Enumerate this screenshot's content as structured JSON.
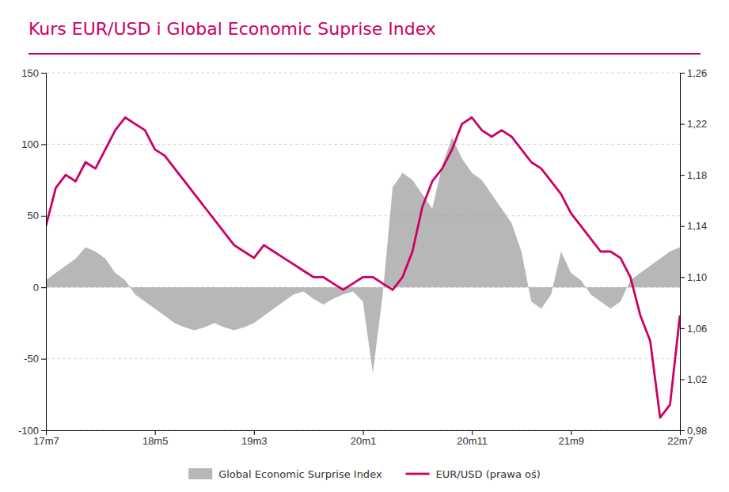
{
  "chart_data": {
    "type": "line",
    "title": "Kurs EUR/USD i Global Economic Suprise Index",
    "categories": [
      "17m7",
      null,
      null,
      null,
      null,
      null,
      null,
      null,
      null,
      null,
      null,
      "18m5",
      null,
      null,
      null,
      null,
      null,
      null,
      null,
      null,
      null,
      "19m3",
      null,
      null,
      null,
      null,
      null,
      null,
      null,
      null,
      null,
      null,
      "20m1",
      null,
      null,
      null,
      null,
      null,
      null,
      null,
      null,
      null,
      null,
      "20m11",
      null,
      null,
      null,
      null,
      null,
      null,
      null,
      null,
      null,
      "21m9",
      null,
      null,
      null,
      null,
      null,
      null,
      null,
      null,
      null,
      null,
      "22m7"
    ],
    "series": [
      {
        "name": "Global Economic Surprise Index",
        "type": "area",
        "color": "#999999",
        "values": [
          5,
          10,
          15,
          20,
          28,
          25,
          20,
          10,
          5,
          -5,
          -10,
          -15,
          -20,
          -25,
          -28,
          -30,
          -28,
          -25,
          -28,
          -30,
          -28,
          -25,
          -20,
          -15,
          -10,
          -5,
          -3,
          -8,
          -12,
          -8,
          -5,
          -3,
          -10,
          -60,
          -5,
          70,
          80,
          75,
          65,
          55,
          85,
          105,
          90,
          80,
          75,
          65,
          55,
          45,
          25,
          -10,
          -15,
          -5,
          25,
          10,
          5,
          -5,
          -10,
          -15,
          -10,
          5,
          10,
          15,
          20,
          25,
          28
        ]
      },
      {
        "name": "EUR/USD (prawa oś)",
        "type": "line",
        "color": "#cc0066",
        "axis": "y2",
        "values": [
          1.14,
          1.17,
          1.18,
          1.175,
          1.19,
          1.185,
          1.2,
          1.215,
          1.225,
          1.22,
          1.215,
          1.2,
          1.195,
          1.185,
          1.175,
          1.165,
          1.155,
          1.145,
          1.135,
          1.125,
          1.12,
          1.115,
          1.125,
          1.12,
          1.115,
          1.11,
          1.105,
          1.1,
          1.1,
          1.095,
          1.09,
          1.095,
          1.1,
          1.1,
          1.095,
          1.09,
          1.1,
          1.12,
          1.155,
          1.175,
          1.185,
          1.2,
          1.22,
          1.225,
          1.215,
          1.21,
          1.215,
          1.21,
          1.2,
          1.19,
          1.185,
          1.175,
          1.165,
          1.15,
          1.14,
          1.13,
          1.12,
          1.12,
          1.115,
          1.1,
          1.07,
          1.05,
          0.99,
          1.0,
          1.07
        ]
      }
    ],
    "ylim": [
      -100,
      150
    ],
    "yticks": [
      -100,
      -50,
      0,
      50,
      100,
      150
    ],
    "y2lim": [
      0.98,
      1.26
    ],
    "y2ticks": [
      {
        "value": 0.98,
        "label": "0,98"
      },
      {
        "value": 1.02,
        "label": "1,02"
      },
      {
        "value": 1.06,
        "label": "1,06"
      },
      {
        "value": 1.1,
        "label": "1,10"
      },
      {
        "value": 1.14,
        "label": "1,14"
      },
      {
        "value": 1.18,
        "label": "1,18"
      },
      {
        "value": 1.22,
        "label": "1,22"
      },
      {
        "value": 1.26,
        "label": "1,26"
      }
    ],
    "grid": true,
    "legend": "bottom"
  }
}
